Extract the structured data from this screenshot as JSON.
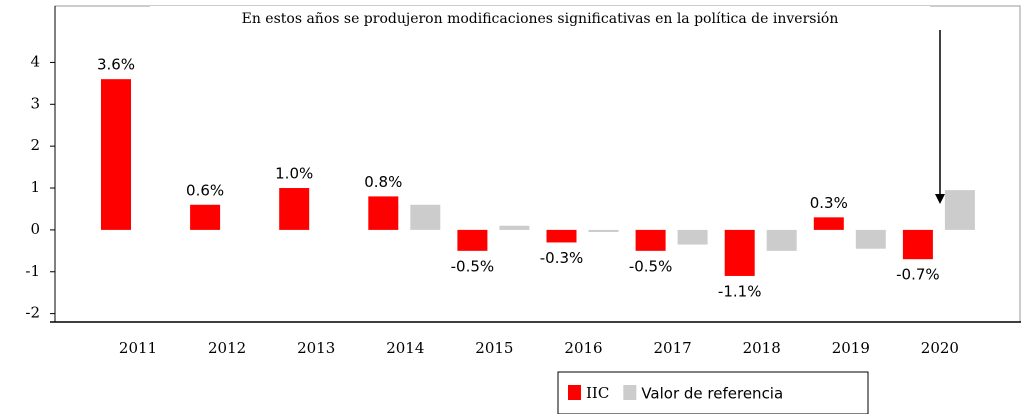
{
  "chart_data": {
    "type": "bar",
    "title": "En estos años se produjeron modificaciones significativas en la política de inversión",
    "categories": [
      "2011",
      "2012",
      "2013",
      "2014",
      "2015",
      "2016",
      "2017",
      "2018",
      "2019",
      "2020"
    ],
    "series": [
      {
        "name": "IIC",
        "color": "#ff0000",
        "values": [
          3.6,
          0.6,
          1.0,
          0.8,
          -0.5,
          -0.3,
          -0.5,
          -1.1,
          0.3,
          -0.7
        ],
        "value_labels": [
          "3.6%",
          "0.6%",
          "1.0%",
          "0.8%",
          "-0.5%",
          "-0.3%",
          "-0.5%",
          "-1.1%",
          "0.3%",
          "-0.7%"
        ]
      },
      {
        "name": "Valor de referencia",
        "color": "#cccccc",
        "values": [
          null,
          null,
          null,
          0.6,
          0.1,
          -0.05,
          -0.35,
          -0.5,
          -0.45,
          0.95
        ]
      }
    ],
    "ylim": [
      -2.2,
      5.3
    ],
    "yticks": [
      -2,
      -1,
      0,
      1,
      2,
      3,
      4
    ]
  }
}
